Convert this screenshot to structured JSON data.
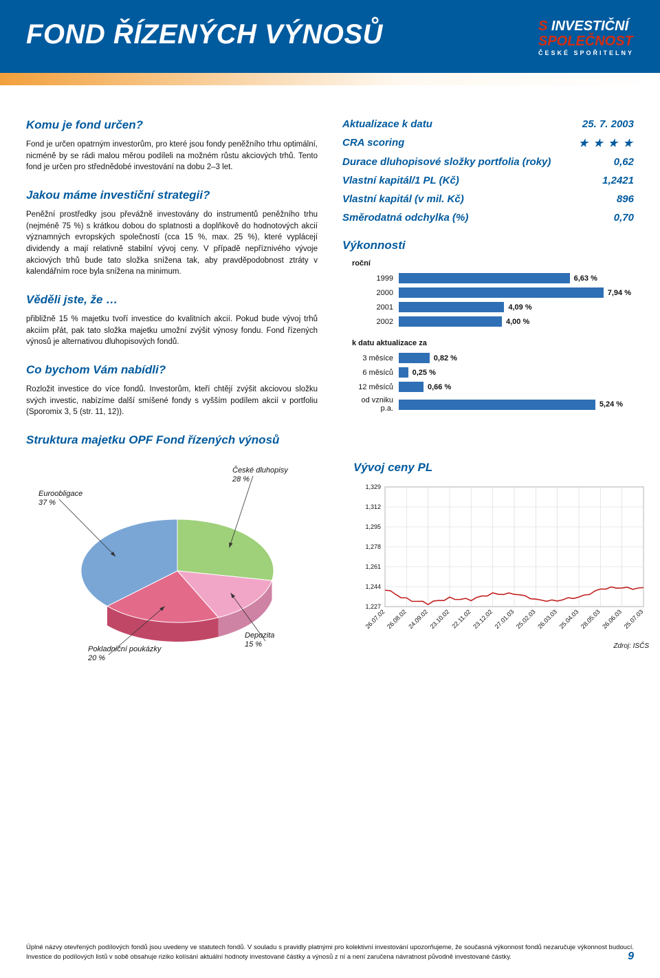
{
  "header": {
    "title": "FOND ŘÍZENÝCH VÝNOSŮ",
    "logo_line1_red": "S",
    "logo_line1_white": " INVESTIČNÍ",
    "logo_line2": "SPOLEČNOST",
    "logo_line3": "ČESKÉ SPOŘITELNY"
  },
  "sections": {
    "s1_title": "Komu je fond určen?",
    "s1_body": "Fond je určen opatrným investorům, pro které jsou fondy peněžního trhu optimální, nicméně by se rádi malou měrou podíleli na možném růstu akciových trhů. Tento fond je určen pro střednědobé investování na dobu 2–3 let.",
    "s2_title": "Jakou máme investiční strategii?",
    "s2_body": "Peněžní prostředky jsou převážně investovány do instrumentů peněžního trhu (nejméně 75 %) s krátkou dobou do splatnosti a doplňkově do hodnotových akcií významných evropských společností (cca 15 %, max. 25 %), které vyplácejí dividendy a mají relativně stabilní vývoj ceny. V případě nepříznivého vývoje akciových trhů bude tato složka snížena tak, aby pravděpodobnost ztráty v kalendářním roce byla snížena na minimum.",
    "s3_title": "Věděli jste, že …",
    "s3_body": "přibližně 15 % majetku tvoří investice do kvalitních akcií. Pokud bude vývoj trhů akciím přát, pak tato složka majetku umožní zvýšit výnosy fondu. Fond řízených výnosů je alternativou dluhopisových fondů.",
    "s4_title": "Co bychom Vám nabídli?",
    "s4_body": "Rozložit investice do více fondů. Investorům, kteří chtějí zvýšit akciovou složku svých investic, nabízíme další smíšené fondy s vyšším podílem akcií v portfoliu (Sporomix 3, 5 (str. 11, 12)).",
    "s5_title": "Struktura majetku OPF Fond řízených výnosů"
  },
  "facts": {
    "rows": [
      {
        "label": "Aktualizace k datu",
        "value": "25. 7. 2003"
      },
      {
        "label": "CRA scoring",
        "value": "★ ★ ★ ★",
        "stars": true
      },
      {
        "label": "Durace dluhopisové složky portfolia (roky)",
        "value": "0,62"
      },
      {
        "label": "Vlastní kapitál/1 PL (Kč)",
        "value": "1,2421"
      },
      {
        "label": "Vlastní kapitál (v mil. Kč)",
        "value": "896"
      },
      {
        "label": "Směrodatná odchylka (%)",
        "value": "0,70"
      }
    ]
  },
  "performance": {
    "title": "Výkonnosti",
    "annual_label": "roční",
    "annual": [
      {
        "label": "1999",
        "value": 6.63,
        "text": "6,63 %"
      },
      {
        "label": "2000",
        "value": 7.94,
        "text": "7,94 %"
      },
      {
        "label": "2001",
        "value": 4.09,
        "text": "4,09 %"
      },
      {
        "label": "2002",
        "value": 4.0,
        "text": "4,00 %"
      }
    ],
    "annual_max": 8.0,
    "kdata_label": "k datu aktualizace za",
    "kdata": [
      {
        "label": "3 měsíce",
        "value": 0.82,
        "text": "0,82 %"
      },
      {
        "label": "6 měsíců",
        "value": 0.25,
        "text": "0,25 %"
      },
      {
        "label": "12 měsíců",
        "value": 0.66,
        "text": "0,66 %"
      },
      {
        "label": "od vzniku p.a.",
        "value": 5.24,
        "text": "5,24 %"
      }
    ],
    "kdata_max": 5.5,
    "bar_color": "#2e6fb5"
  },
  "pie": {
    "slices": [
      {
        "label": "České dluhopisy",
        "pct": "28 %",
        "color": "#9fd07a",
        "value": 28
      },
      {
        "label": "Depozita",
        "pct": "15 %",
        "color": "#f2a6c7",
        "value": 15
      },
      {
        "label": "Pokladniční poukázky",
        "pct": "20 %",
        "color": "#e46a8a",
        "value": 20
      },
      {
        "label": "Euroobligace",
        "pct": "37 %",
        "color": "#7aa6d6",
        "value": 37
      }
    ]
  },
  "linechart": {
    "title": "Vývoj ceny PL",
    "y_labels": [
      "1,329",
      "1,312",
      "1,295",
      "1,278",
      "1,261",
      "1,244",
      "1,227"
    ],
    "y_min": 1.227,
    "y_max": 1.329,
    "x_labels": [
      "26.07.02",
      "26.08.02",
      "24.09.02",
      "23.10.02",
      "22.11.02",
      "23.12.02",
      "27.01.03",
      "25.02.03",
      "26.03.03",
      "25.04.03",
      "28.05.03",
      "26.06.03",
      "25.07.03"
    ],
    "series_color": "#c21f1f",
    "grid_color": "#d6d6d6",
    "data": [
      1.241,
      1.234,
      1.229,
      1.235,
      1.232,
      1.239,
      1.237,
      1.234,
      1.231,
      1.236,
      1.241,
      1.244,
      1.242
    ],
    "source": "Zdroj: ISČS"
  },
  "footnote": "Úplné názvy otevřených podílových fondů jsou uvedeny ve statutech fondů. V souladu s pravidly platnými pro kolektivní investování upozorňujeme, že současná výkonnost fondů nezaručuje výkonnost budoucí. Investice do podílových listů v sobě obsahuje riziko kolísání aktuální hodnoty investované částky a výnosů z ní a není zaručena návratnost původně investované částky.",
  "page_number": "9"
}
